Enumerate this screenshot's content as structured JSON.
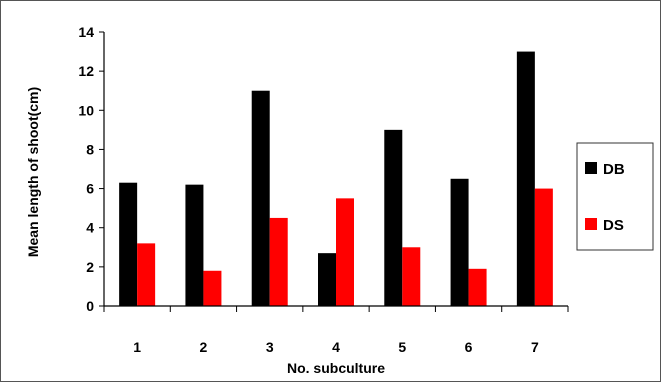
{
  "chart_data": {
    "type": "bar",
    "categories": [
      "1",
      "2",
      "3",
      "4",
      "5",
      "6",
      "7"
    ],
    "series": [
      {
        "name": "DB",
        "color": "#000000",
        "values": [
          6.3,
          6.2,
          11.0,
          2.7,
          9.0,
          6.5,
          13.0
        ]
      },
      {
        "name": "DS",
        "color": "#ff0000",
        "values": [
          3.2,
          1.8,
          4.5,
          5.5,
          3.0,
          1.9,
          6.0
        ]
      }
    ],
    "title": "",
    "xlabel": "No. subculture",
    "ylabel": "Mean length of shoot(cm)",
    "ylim": [
      0,
      14
    ],
    "yticks": [
      0,
      2,
      4,
      6,
      8,
      10,
      12,
      14
    ],
    "grid": false,
    "legend": "right"
  }
}
